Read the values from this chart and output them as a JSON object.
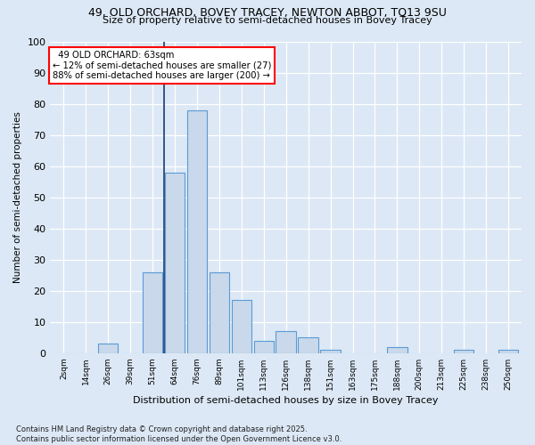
{
  "title1": "49, OLD ORCHARD, BOVEY TRACEY, NEWTON ABBOT, TQ13 9SU",
  "title2": "Size of property relative to semi-detached houses in Bovey Tracey",
  "xlabel": "Distribution of semi-detached houses by size in Bovey Tracey",
  "ylabel": "Number of semi-detached properties",
  "categories": [
    "2sqm",
    "14sqm",
    "26sqm",
    "39sqm",
    "51sqm",
    "64sqm",
    "76sqm",
    "89sqm",
    "101sqm",
    "113sqm",
    "126sqm",
    "138sqm",
    "151sqm",
    "163sqm",
    "175sqm",
    "188sqm",
    "200sqm",
    "213sqm",
    "225sqm",
    "238sqm",
    "250sqm"
  ],
  "values": [
    0,
    0,
    3,
    0,
    26,
    58,
    78,
    26,
    17,
    4,
    7,
    5,
    1,
    0,
    0,
    2,
    0,
    0,
    1,
    0,
    1
  ],
  "bar_color": "#c9d9eb",
  "bar_edge_color": "#5b9bd5",
  "subject_bin": 5,
  "subject_label": "49 OLD ORCHARD: 63sqm",
  "pct_smaller": 12,
  "pct_larger": 88,
  "n_smaller": 27,
  "n_larger": 200,
  "background_color": "#dce8f5",
  "grid_color": "#ffffff",
  "footer": "Contains HM Land Registry data © Crown copyright and database right 2025.\nContains public sector information licensed under the Open Government Licence v3.0.",
  "ylim": [
    0,
    100
  ],
  "yticks": [
    0,
    10,
    20,
    30,
    40,
    50,
    60,
    70,
    80,
    90,
    100
  ]
}
